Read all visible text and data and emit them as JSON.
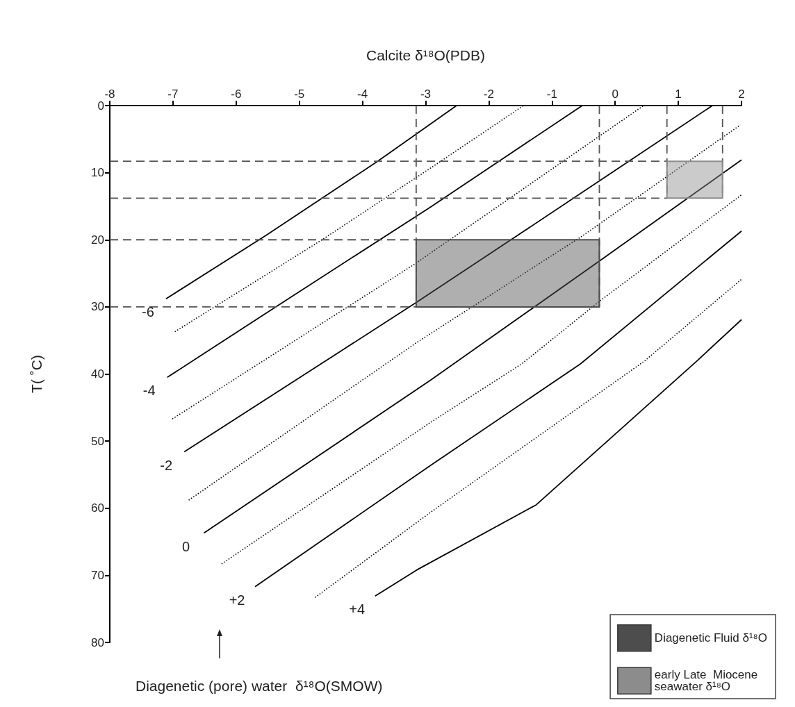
{
  "chart_data": {
    "type": "line",
    "xlabel": "Calcite δ¹⁸O(PDB)",
    "ylabel": "T( ˚C)",
    "xlim": [
      -8,
      2
    ],
    "xticks": [
      -8,
      -7,
      -6,
      -5,
      -4,
      -3,
      -2,
      -1,
      0,
      1,
      2
    ],
    "ylim": [
      80,
      0
    ],
    "yticks": [
      0,
      10,
      20,
      30,
      40,
      50,
      60,
      70,
      80
    ],
    "grid": false,
    "marker": "none",
    "legend": "bottom right",
    "annotations": [
      "Diagenetic (pore) water  δ¹⁸O(SMOW)"
    ],
    "series": [
      {
        "name": "-6",
        "line_style": "solid",
        "color": "#000000",
        "x": [
          -7.11,
          -5.52,
          -3.76,
          -2.51
        ],
        "values": [
          28.8,
          19.3,
          8.3,
          0
        ]
      },
      {
        "line_style": "dotted",
        "color": "#000000",
        "x": [
          -6.97,
          -4.64,
          -2.92,
          -1.45
        ],
        "values": [
          33.7,
          20,
          9.3,
          0
        ]
      },
      {
        "name": "-4",
        "line_style": "solid",
        "color": "#000000",
        "x": [
          -7.09,
          -5.34,
          -2.92,
          -0.52
        ],
        "values": [
          40.5,
          29.8,
          15.1,
          0
        ]
      },
      {
        "line_style": "dotted",
        "color": "#000000",
        "x": [
          -7.01,
          -3.17,
          0.45
        ],
        "values": [
          46.7,
          23.6,
          0
        ]
      },
      {
        "name": "-2",
        "line_style": "solid",
        "color": "#000000",
        "x": [
          -6.82,
          -3.14,
          -1.6,
          1.54
        ],
        "values": [
          51.6,
          29.3,
          19.7,
          0
        ]
      },
      {
        "line_style": "dotted",
        "color": "#000000",
        "x": [
          -6.75,
          -3.14,
          -0.53,
          1.98
        ],
        "values": [
          58.8,
          35.3,
          19.5,
          2.9
        ]
      },
      {
        "name": "0",
        "line_style": "solid",
        "color": "#000000",
        "x": [
          -6.51,
          -2.92,
          -0.24,
          2
        ],
        "values": [
          63.7,
          40.9,
          23.1,
          8.1
        ]
      },
      {
        "line_style": "dotted",
        "color": "#000000",
        "x": [
          -6.23,
          -2.92,
          -1.48,
          -0.24,
          2
        ],
        "values": [
          68.3,
          47.2,
          38.5,
          29.1,
          13.3
        ]
      },
      {
        "name": "+2",
        "line_style": "solid",
        "color": "#000000",
        "x": [
          -5.7,
          -2.92,
          -0.55,
          2
        ],
        "values": [
          71.7,
          53.6,
          38.5,
          18.7
        ]
      },
      {
        "line_style": "dotted",
        "color": "#000000",
        "x": [
          -4.75,
          -2.92,
          0.46,
          2
        ],
        "values": [
          73.3,
          60.6,
          38.1,
          25.9
        ]
      },
      {
        "name": "+4",
        "line_style": "solid",
        "color": "#000000",
        "x": [
          -3.8,
          -3.14,
          -1.25,
          1.29,
          2
        ],
        "values": [
          73.1,
          69.2,
          59.5,
          38.1,
          31.9
        ]
      },
      {
        "line_style": "dashed",
        "color": "#555555",
        "x": [
          -8,
          0.82
        ],
        "values": [
          8.3,
          8.3
        ]
      },
      {
        "line_style": "dashed",
        "color": "#555555",
        "x": [
          -8,
          0.82
        ],
        "values": [
          13.8,
          13.8
        ]
      },
      {
        "line_style": "dashed",
        "color": "#555555",
        "x": [
          -8,
          -3.15
        ],
        "values": [
          20,
          20
        ]
      },
      {
        "line_style": "dashed",
        "color": "#555555",
        "x": [
          -8,
          -3.15
        ],
        "values": [
          30,
          30
        ]
      },
      {
        "line_style": "dashed",
        "color": "#555555",
        "x": [
          -3.15,
          -3.15
        ],
        "values": [
          0,
          30
        ]
      },
      {
        "line_style": "dashed",
        "color": "#555555",
        "x": [
          -0.25,
          -0.25
        ],
        "values": [
          0,
          30
        ]
      },
      {
        "line_style": "dashed",
        "color": "#555555",
        "x": [
          0.82,
          0.82
        ],
        "values": [
          0,
          13.8
        ]
      },
      {
        "line_style": "dashed",
        "color": "#555555",
        "x": [
          1.7,
          1.7
        ],
        "values": [
          0,
          13.8
        ]
      },
      {
        "name": "Diagenetic Fluid δ¹⁸O",
        "type": "area",
        "color": "#4d4d4d",
        "x": [
          -3.15,
          -0.25,
          -0.25,
          -3.15,
          -3.15
        ],
        "values": [
          20,
          20,
          30,
          30,
          20
        ]
      },
      {
        "name": "early Late  Miocene seawater δ¹⁸O",
        "type": "area",
        "color": "#8c8c8c",
        "x": [
          0.82,
          1.7,
          1.7,
          0.82,
          0.82
        ],
        "values": [
          8.3,
          8.3,
          13.8,
          13.8,
          8.3
        ]
      }
    ]
  }
}
